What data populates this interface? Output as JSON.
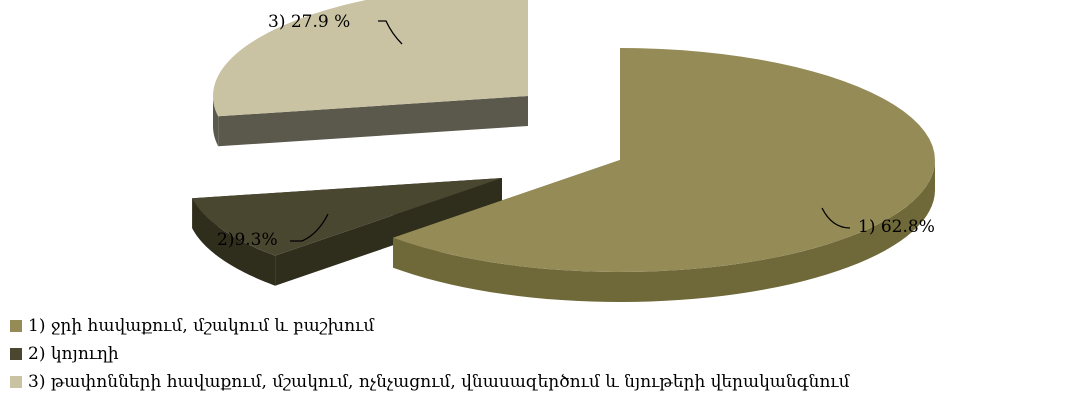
{
  "chart_data": {
    "type": "pie",
    "title": "",
    "exploded": true,
    "three_d": true,
    "legend_position": "bottom-left",
    "categories": [
      "1) ջրի հավաքում, մշակում և բաշխում",
      "2) կոյուղի",
      "3) թափոնների հավաքում, մշակում, ոչնչացում, վնասազերծում և նյութերի վերականգնում"
    ],
    "values": [
      62.8,
      9.3,
      27.9
    ],
    "data_labels": [
      "1) 62.8%",
      "2)9.3%",
      "3) 27.9 %"
    ],
    "colors": [
      "#958B57",
      "#4A4731",
      "#C9C3A3"
    ],
    "side_colors": [
      "#6F6839",
      "#2F2D1C",
      "#5B584C"
    ]
  }
}
